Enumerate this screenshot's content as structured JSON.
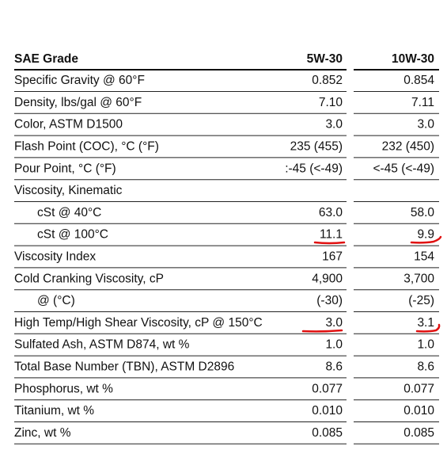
{
  "table": {
    "header": [
      "SAE Grade",
      "5W-30",
      "10W-30"
    ],
    "rows": [
      [
        "Specific Gravity @ 60°F",
        "0.852",
        "0.854"
      ],
      [
        "Density, lbs/gal @ 60°F",
        "7.10",
        "7.11"
      ],
      [
        "Color, ASTM D1500",
        "3.0",
        "3.0"
      ],
      [
        "Flash Point (COC), °C (°F)",
        "235 (455)",
        "232 (450)"
      ],
      [
        "Pour Point, °C (°F)",
        ":-45 (<-49)",
        "<-45 (<-49)"
      ],
      [
        "Viscosity, Kinematic"
      ],
      [
        "cSt @ 40°C",
        "63.0",
        "58.0"
      ],
      [
        "cSt @ 100°C",
        "11.1",
        "9.9"
      ],
      [
        "Viscosity Index",
        "167",
        "154"
      ],
      [
        "Cold Cranking Viscosity, cP",
        "4,900",
        "3,700"
      ],
      [
        "@ (°C)",
        "(-30)",
        "(-25)"
      ],
      [
        "High Temp/High Shear Viscosity, cP @ 150°C",
        "3.0",
        "3.1"
      ],
      [
        "Sulfated Ash, ASTM D874, wt %",
        "1.0",
        "1.0"
      ],
      [
        "Total Base Number (TBN), ASTM D2896",
        "8.6",
        "8.6"
      ],
      [
        "Phosphorus, wt %",
        "0.077",
        "0.077"
      ],
      [
        "Titanium, wt %",
        "0.010",
        "0.010"
      ],
      [
        "Zinc, wt %",
        "0.085",
        "0.085"
      ]
    ]
  }
}
